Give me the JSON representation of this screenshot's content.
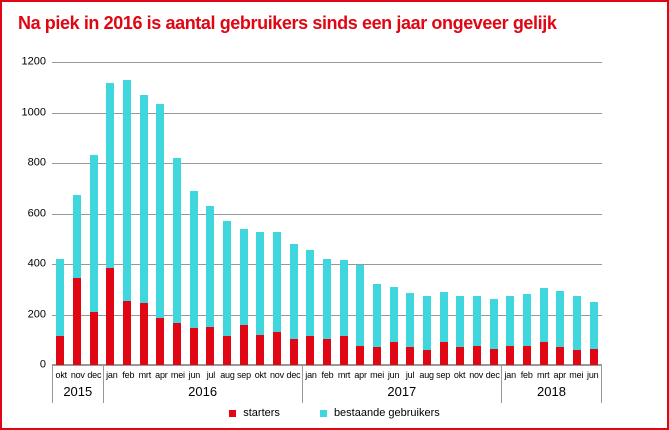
{
  "title": "Na piek in 2016 is aantal gebruikers sinds een jaar ongeveer gelijk",
  "colors": {
    "accent_red": "#e10613",
    "starters_red": "#e10613",
    "bestaande_cyan": "#3fd6de",
    "gridline_gray": "#999999",
    "text_black": "#000000"
  },
  "legend": {
    "items": [
      "starters",
      "bestaande gebruikers"
    ]
  },
  "chart_data": {
    "type": "bar",
    "stacked": true,
    "title": "Na piek in 2016 is aantal gebruikers sinds een jaar ongeveer gelijk",
    "xlabel": "",
    "ylabel": "",
    "ylim": [
      0,
      1200
    ],
    "ytick_step": 200,
    "grid": true,
    "legend_position": "bottom",
    "groups": [
      {
        "year": "2015",
        "months": [
          "okt",
          "nov",
          "dec"
        ]
      },
      {
        "year": "2016",
        "months": [
          "jan",
          "feb",
          "mrt",
          "apr",
          "mei",
          "jun",
          "jul",
          "aug",
          "sep",
          "okt",
          "nov",
          "dec"
        ]
      },
      {
        "year": "2017",
        "months": [
          "jan",
          "feb",
          "mrt",
          "apr",
          "mei",
          "jun",
          "jul",
          "aug",
          "sep",
          "okt",
          "nov",
          "dec"
        ]
      },
      {
        "year": "2018",
        "months": [
          "jan",
          "feb",
          "mrt",
          "apr",
          "mei",
          "jun"
        ]
      }
    ],
    "series": [
      {
        "name": "starters",
        "color": "#e10613",
        "values": [
          115,
          345,
          210,
          385,
          255,
          245,
          185,
          165,
          145,
          150,
          115,
          160,
          120,
          130,
          105,
          115,
          105,
          115,
          75,
          70,
          90,
          70,
          60,
          90,
          70,
          75,
          65,
          75,
          75,
          90,
          70,
          60,
          65
        ]
      },
      {
        "name": "bestaande gebruikers",
        "color": "#3fd6de",
        "values": [
          305,
          330,
          620,
          730,
          875,
          825,
          850,
          655,
          545,
          480,
          455,
          380,
          405,
          395,
          375,
          340,
          315,
          300,
          320,
          250,
          220,
          215,
          215,
          200,
          205,
          200,
          195,
          200,
          205,
          215,
          225,
          215,
          185
        ]
      }
    ],
    "totals": [
      420,
      675,
      830,
      1115,
      1130,
      1070,
      1035,
      820,
      690,
      630,
      570,
      540,
      525,
      525,
      480,
      455,
      420,
      415,
      395,
      320,
      310,
      285,
      275,
      290,
      275,
      275,
      260,
      275,
      280,
      305,
      295,
      275,
      250
    ]
  }
}
